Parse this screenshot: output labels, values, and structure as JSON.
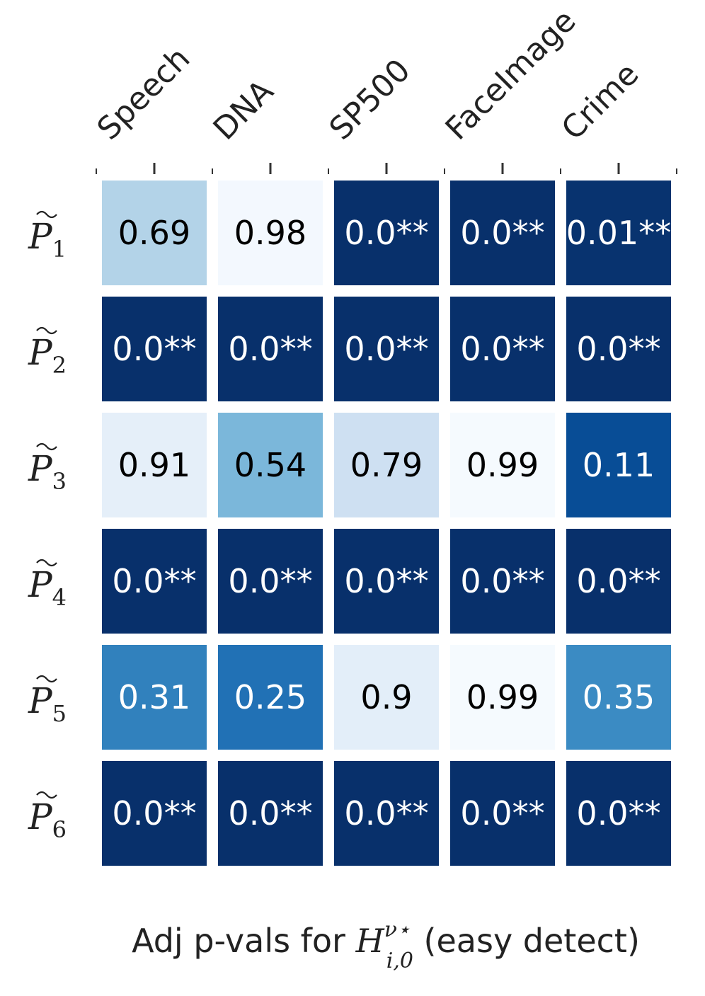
{
  "chart_data": {
    "type": "heatmap",
    "columns": [
      "Speech",
      "DNA",
      "SP500",
      "FaceImage",
      "Crime"
    ],
    "rows": [
      {
        "base": "P",
        "sub": "1"
      },
      {
        "base": "P",
        "sub": "2"
      },
      {
        "base": "P",
        "sub": "3"
      },
      {
        "base": "P",
        "sub": "4"
      },
      {
        "base": "P",
        "sub": "5"
      },
      {
        "base": "P",
        "sub": "6"
      }
    ],
    "values": [
      [
        0.69,
        0.98,
        0.0,
        0.0,
        0.01
      ],
      [
        0.0,
        0.0,
        0.0,
        0.0,
        0.0
      ],
      [
        0.91,
        0.54,
        0.79,
        0.99,
        0.11
      ],
      [
        0.0,
        0.0,
        0.0,
        0.0,
        0.0
      ],
      [
        0.31,
        0.25,
        0.9,
        0.99,
        0.35
      ],
      [
        0.0,
        0.0,
        0.0,
        0.0,
        0.0
      ]
    ],
    "cell_labels": [
      [
        "0.69",
        "0.98",
        "0.0**",
        "0.0**",
        "0.01**"
      ],
      [
        "0.0**",
        "0.0**",
        "0.0**",
        "0.0**",
        "0.0**"
      ],
      [
        "0.91",
        "0.54",
        "0.79",
        "0.99",
        "0.11"
      ],
      [
        "0.0**",
        "0.0**",
        "0.0**",
        "0.0**",
        "0.0**"
      ],
      [
        "0.31",
        "0.25",
        "0.9",
        "0.99",
        "0.35"
      ],
      [
        "0.0**",
        "0.0**",
        "0.0**",
        "0.0**",
        "0.0**"
      ]
    ],
    "colormap": "Blues_reversed",
    "color_range": [
      0,
      1
    ],
    "xlabel": {
      "prefix": "Adj p-vals for ",
      "math_base": "H",
      "math_sup": "ν⋆",
      "math_sub": "i,0",
      "suffix": " (easy detect)"
    },
    "colorbar": false,
    "grid": false
  }
}
